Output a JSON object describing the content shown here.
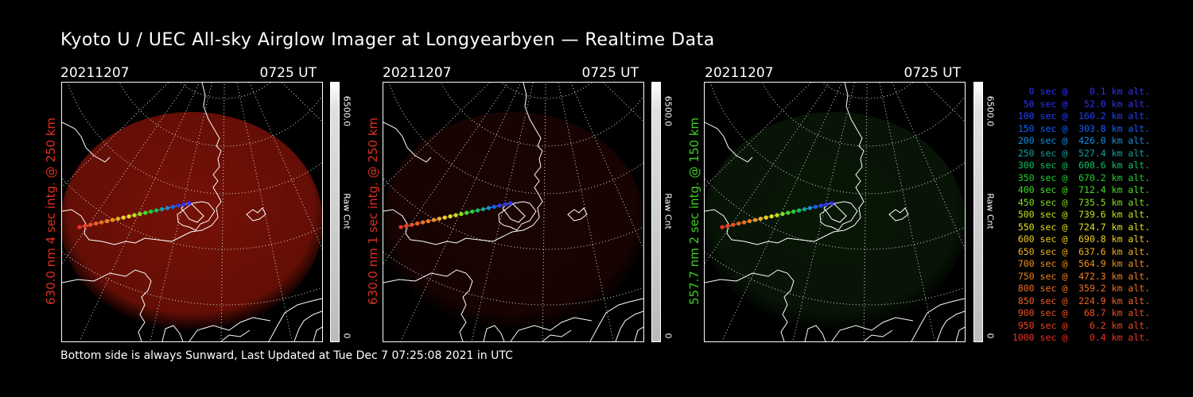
{
  "title": "Kyoto U / UEC All-sky Airglow Imager at Longyearbyen — Realtime Data",
  "footer": "Bottom side is always Sunward, Last Updated at Tue Dec  7 07:25:08 2021 in UTC",
  "panels": [
    {
      "date": "20211207",
      "time": "0725 UT",
      "label": "630.0 nm  4 sec intg. @ 250 km",
      "label_color": "#e03020",
      "scale_max": "6500.0",
      "scale_unit": "Raw Cnt",
      "scale_min": "0",
      "image_tint": "#8a1408",
      "image_intensity": 0.85
    },
    {
      "date": "20211207",
      "time": "0725 UT",
      "label": "630.0 nm  1 sec intg. @ 250 km",
      "label_color": "#e03020",
      "scale_max": "6500.0",
      "scale_unit": "Raw Cnt",
      "scale_min": "0",
      "image_tint": "#3a0804",
      "image_intensity": 0.45
    },
    {
      "date": "20211207",
      "time": "0725 UT",
      "label": "557.7 nm  2 sec intg. @ 150 km",
      "label_color": "#3cd020",
      "scale_max": "6500.0",
      "scale_unit": "Raw Cnt",
      "scale_min": "0",
      "image_tint": "#0f2a0c",
      "image_intensity": 0.55
    }
  ],
  "legend": [
    {
      "text": "   0 sec @    0.1 km alt.",
      "color": "#3030ff"
    },
    {
      "text": "  50 sec @   52.0 km alt.",
      "color": "#3030ff"
    },
    {
      "text": " 100 sec @  160.2 km alt.",
      "color": "#2040ff"
    },
    {
      "text": " 150 sec @  303.8 km alt.",
      "color": "#1060ff"
    },
    {
      "text": " 200 sec @  426.0 km alt.",
      "color": "#1090e0"
    },
    {
      "text": " 250 sec @  527.4 km alt.",
      "color": "#10a0a0"
    },
    {
      "text": " 300 sec @  608.6 km alt.",
      "color": "#10c060"
    },
    {
      "text": " 350 sec @  670.2 km alt.",
      "color": "#20d030"
    },
    {
      "text": " 400 sec @  712.4 km alt.",
      "color": "#40e020"
    },
    {
      "text": " 450 sec @  735.5 km alt.",
      "color": "#80e020"
    },
    {
      "text": " 500 sec @  739.6 km alt.",
      "color": "#c0e020"
    },
    {
      "text": " 550 sec @  724.7 km alt.",
      "color": "#e0e020"
    },
    {
      "text": " 600 sec @  690.8 km alt.",
      "color": "#f0d020"
    },
    {
      "text": " 650 sec @  637.6 km alt.",
      "color": "#f0b020"
    },
    {
      "text": " 700 sec @  564.9 km alt.",
      "color": "#f09020"
    },
    {
      "text": " 750 sec @  472.3 km alt.",
      "color": "#f08020"
    },
    {
      "text": " 800 sec @  359.2 km alt.",
      "color": "#f07020"
    },
    {
      "text": " 850 sec @  224.9 km alt.",
      "color": "#f06020"
    },
    {
      "text": " 900 sec @   68.7 km alt.",
      "color": "#f05020"
    },
    {
      "text": " 950 sec @    6.2 km alt.",
      "color": "#f04020"
    },
    {
      "text": "1000 sec @    0.4 km alt.",
      "color": "#f03020"
    }
  ]
}
